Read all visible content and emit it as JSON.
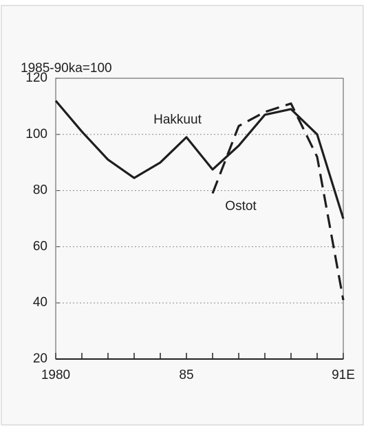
{
  "chart_data": {
    "type": "line",
    "y_axis_label": "1985-90ka=100",
    "x": [
      1980,
      1981,
      1982,
      1983,
      1984,
      1985,
      1986,
      1987,
      1988,
      1989,
      1990,
      1991
    ],
    "series": [
      {
        "name": "Hakkuut",
        "color": "#1e1e1e",
        "style": "solid",
        "values": [
          112,
          101,
          91,
          84.5,
          90,
          99,
          87.5,
          96,
          107,
          109,
          100,
          70
        ]
      },
      {
        "name": "Ostot",
        "color": "#1e1e1e",
        "style": "dashed",
        "values": [
          null,
          null,
          null,
          null,
          null,
          null,
          79,
          103,
          108,
          111,
          92,
          41
        ]
      }
    ],
    "xlim": [
      1980,
      1991
    ],
    "xticks": [
      1980,
      {
        "value": 1985,
        "label": "85"
      },
      {
        "value": 1991,
        "label": "91E"
      }
    ],
    "xminor_ticks": [
      1981,
      1982,
      1983,
      1984,
      1986,
      1987,
      1988,
      1989,
      1990
    ],
    "ylim": [
      20,
      120
    ],
    "yticks": [
      20,
      40,
      60,
      80,
      100,
      120
    ],
    "grid": true
  }
}
